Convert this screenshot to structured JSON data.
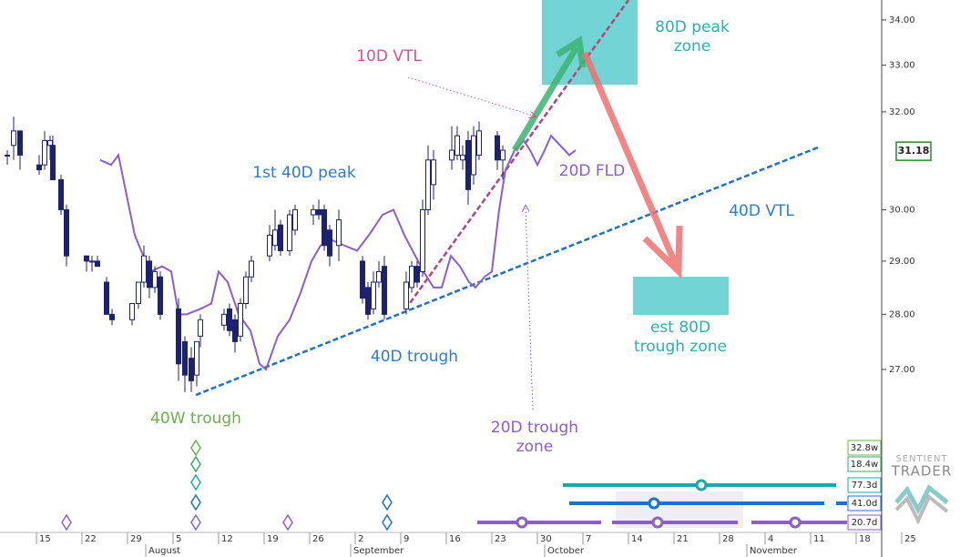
{
  "chart_data": {
    "type": "candlestick",
    "log_scale": true,
    "ylim": [
      24.06,
      34.45
    ],
    "yticks": [
      {
        "value": 27,
        "label": "27.00"
      },
      {
        "value": 28,
        "label": "28.00"
      },
      {
        "value": 29,
        "label": "29.00"
      },
      {
        "value": 30,
        "label": "30.00"
      },
      {
        "value": 32,
        "label": "32.00"
      },
      {
        "value": 33,
        "label": "33.00"
      },
      {
        "value": 34,
        "label": "34.00"
      }
    ],
    "last_price": 31.18,
    "x_ticks": [
      "15",
      "22",
      "29",
      "5",
      "12",
      "19",
      "26",
      "2",
      "9",
      "16",
      "23",
      "30",
      "7",
      "14",
      "21",
      "28",
      "4",
      "11",
      "18",
      "25"
    ],
    "months": [
      "August",
      "September",
      "October",
      "November"
    ],
    "candle_color": "#1c2170",
    "open": [
      31.1,
      31.3,
      31.6,
      30.9,
      30.9,
      31.3,
      31.3,
      30.6,
      30.0,
      29.1,
      29.0,
      29.0,
      28.6,
      28.0,
      27.9,
      28.2,
      28.6,
      29.0,
      28.5,
      28.7,
      28.1,
      27.5,
      27.2,
      26.9,
      27.6,
      27.8,
      28.1,
      27.9,
      27.6,
      28.2,
      28.7,
      29.1,
      29.3,
      29.7,
      29.2,
      29.6,
      29.9,
      30.0,
      30.0,
      29.6,
      29.3,
      29.0,
      28.5,
      28.1,
      28.6,
      28.9,
      28.1,
      28.5,
      28.9,
      28.8,
      30.0,
      30.5,
      31.0,
      31.1,
      31.0,
      31.4,
      30.7,
      31.1,
      31.5,
      31.0
    ],
    "high": [
      31.2,
      31.9,
      31.6,
      31.1,
      31.6,
      31.5,
      31.5,
      30.7,
      30.1,
      29.1,
      29.1,
      29.1,
      28.7,
      28.1,
      28.2,
      28.6,
      29.3,
      29.1,
      28.9,
      28.8,
      28.3,
      27.6,
      27.4,
      27.5,
      28.0,
      28.1,
      28.2,
      28.0,
      28.3,
      28.8,
      29.1,
      29.7,
      30.0,
      29.8,
      30.0,
      30.1,
      30.1,
      30.2,
      30.1,
      29.7,
      30.0,
      29.1,
      28.6,
      28.8,
      29.0,
      29.1,
      28.8,
      29.0,
      29.0,
      30.2,
      31.3,
      31.2,
      31.7,
      31.7,
      31.3,
      31.6,
      31.7,
      31.8,
      31.6,
      31.3
    ],
    "low": [
      30.9,
      31.0,
      30.8,
      30.7,
      30.8,
      31.0,
      30.6,
      29.9,
      28.9,
      28.8,
      28.8,
      28.9,
      28.0,
      27.8,
      27.8,
      28.1,
      28.5,
      28.3,
      28.4,
      27.9,
      26.8,
      26.6,
      26.6,
      26.7,
      27.4,
      27.7,
      27.6,
      27.3,
      27.5,
      28.1,
      28.6,
      29.0,
      29.2,
      29.1,
      29.1,
      29.5,
      29.7,
      29.8,
      29.2,
      28.9,
      29.0,
      28.2,
      27.9,
      28.0,
      28.5,
      27.9,
      28.0,
      28.4,
      28.5,
      28.7,
      29.9,
      30.2,
      30.8,
      31.0,
      30.8,
      30.1,
      30.5,
      31.0,
      30.8,
      30.6
    ],
    "close": [
      31.1,
      31.6,
      31.1,
      30.8,
      31.4,
      31.4,
      30.6,
      30.0,
      29.1,
      29.0,
      29.0,
      28.9,
      28.0,
      27.9,
      28.2,
      28.6,
      29.1,
      28.5,
      28.8,
      28.0,
      27.1,
      26.9,
      26.8,
      27.5,
      27.9,
      28.0,
      27.7,
      27.5,
      28.2,
      28.7,
      29.0,
      29.5,
      29.6,
      29.2,
      29.9,
      30.0,
      30.0,
      29.9,
      29.3,
      29.1,
      29.8,
      28.3,
      28.0,
      28.6,
      28.8,
      28.0,
      28.6,
      28.9,
      28.6,
      30.0,
      31.0,
      31.0,
      31.2,
      31.5,
      31.1,
      30.4,
      31.5,
      31.6,
      31.0,
      31.2
    ],
    "cycle_line": {
      "color": "#8a5cd6",
      "values": [
        31.0,
        30.9,
        31.1,
        30.2,
        29.5,
        29.2,
        28.8,
        28.9,
        28.8,
        28.0,
        28.0,
        28.1,
        28.2,
        28.8,
        28.6,
        28.0,
        27.7,
        27.1,
        27.0,
        27.6,
        27.9,
        28.4,
        29.0,
        29.3,
        29.4,
        29.3,
        29.2,
        29.5,
        29.9,
        30.0,
        29.5,
        29.1,
        28.8,
        28.5,
        28.5,
        29.1,
        28.9,
        28.6,
        28.5,
        28.7,
        28.8,
        30.0,
        30.8,
        31.2,
        31.4,
        31.2,
        30.9,
        31.2,
        31.5,
        31.3,
        31.1,
        31.2
      ]
    },
    "annotations": [
      [
        "10D VTL"
      ],
      [
        "80D peak",
        "zone"
      ],
      [
        "1st 40D peak"
      ],
      [
        "20D FLD"
      ],
      [
        "40D VTL"
      ],
      [
        "est 80D",
        "trough zone"
      ],
      [
        "40D trough"
      ],
      [
        "40W trough"
      ],
      [
        "20D trough",
        "zone"
      ]
    ],
    "cycles": [
      {
        "label": "32.8w",
        "color": "#6ab04c"
      },
      {
        "label": "18.4w",
        "color": "#3aa860"
      },
      {
        "label": "77.3d",
        "color": "#1aa8a8"
      },
      {
        "label": "41.0d",
        "color": "#1f6fd0"
      },
      {
        "label": "20.7d",
        "color": "#8a5cd6"
      }
    ],
    "branding": [
      "SENTIENT",
      "TRADER"
    ]
  }
}
